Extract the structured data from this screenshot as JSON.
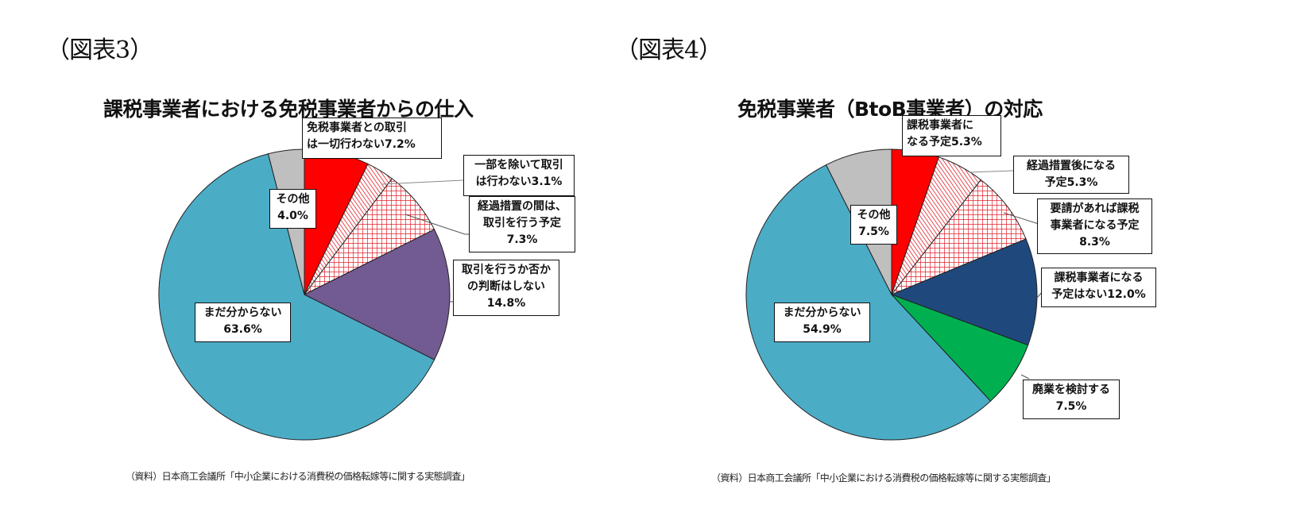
{
  "figures": [
    {
      "fig_label": "（図表3）",
      "title": "課税事業者における免税事業者からの仕入",
      "source": "（資料）日本商工会議所「中小企業における消費税の価格転嫁等に関する実態調査」",
      "labels": [
        {
          "line1": "免税事業者との取引",
          "line2": "は一切行わない7.2%",
          "line3": ""
        },
        {
          "line1": "一部を除いて取引",
          "line2": "は行わない3.1%",
          "line3": ""
        },
        {
          "line1": "経過措置の間は、",
          "line2": "取引を行う予定",
          "line3": "7.3%"
        },
        {
          "line1": "取引を行うか否か",
          "line2": "の判断はしない",
          "line3": "14.8%"
        },
        {
          "line1": "まだ分からない",
          "line2": "63.6%",
          "line3": ""
        },
        {
          "line1": "その他",
          "line2": "4.0%",
          "line3": ""
        }
      ]
    },
    {
      "fig_label": "（図表4）",
      "title": "免税事業者（BtoB事業者）の対応",
      "source": "（資料）日本商工会議所「中小企業における消費税の価格転嫁等に関する実態調査」",
      "labels": [
        {
          "line1": "課税事業者に",
          "line2": "なる予定5.3%",
          "line3": ""
        },
        {
          "line1": "経過措置後になる",
          "line2": "予定5.3%",
          "line3": ""
        },
        {
          "line1": "要請があれば課税",
          "line2": "事業者になる予定",
          "line3": "8.3%"
        },
        {
          "line1": "課税事業者になる",
          "line2": "予定はない12.0%",
          "line3": ""
        },
        {
          "line1": "廃業を検討する",
          "line2": "7.5%",
          "line3": ""
        },
        {
          "line1": "まだ分からない",
          "line2": "54.9%",
          "line3": ""
        },
        {
          "line1": "その他",
          "line2": "7.5%",
          "line3": ""
        }
      ]
    }
  ],
  "colors": {
    "red": "#ff0000",
    "hatch_red": "#e0202a",
    "purple": "#725a92",
    "navy": "#1f497d",
    "green": "#00b050",
    "teal": "#4bacc6",
    "gray": "#bfbfbf"
  },
  "chart_data": [
    {
      "type": "pie",
      "title": "課税事業者における免税事業者からの仕入",
      "categories": [
        "免税事業者との取引は一切行わない",
        "一部を除いて取引は行わない",
        "経過措置の間は、取引を行う予定",
        "取引を行うか否かの判断はしない",
        "まだ分からない",
        "その他"
      ],
      "values": [
        7.2,
        3.1,
        7.3,
        14.8,
        63.6,
        4.0
      ],
      "unit": "%",
      "colors": [
        "#ff0000",
        "hatch-diagonal-red",
        "hatch-grid-red",
        "#725a92",
        "#4bacc6",
        "#bfbfbf"
      ],
      "start_angle": "12 o'clock, clockwise"
    },
    {
      "type": "pie",
      "title": "免税事業者（BtoB事業者）の対応",
      "categories": [
        "課税事業者になる予定",
        "経過措置後になる予定",
        "要請があれば課税事業者になる予定",
        "課税事業者になる予定はない",
        "廃業を検討する",
        "まだ分からない",
        "その他"
      ],
      "values": [
        5.3,
        5.3,
        8.3,
        12.0,
        7.5,
        54.9,
        7.5
      ],
      "unit": "%",
      "colors": [
        "#ff0000",
        "hatch-diagonal-red",
        "hatch-grid-red",
        "#1f497d",
        "#00b050",
        "#4bacc6",
        "#bfbfbf"
      ],
      "start_angle": "12 o'clock, clockwise"
    }
  ]
}
